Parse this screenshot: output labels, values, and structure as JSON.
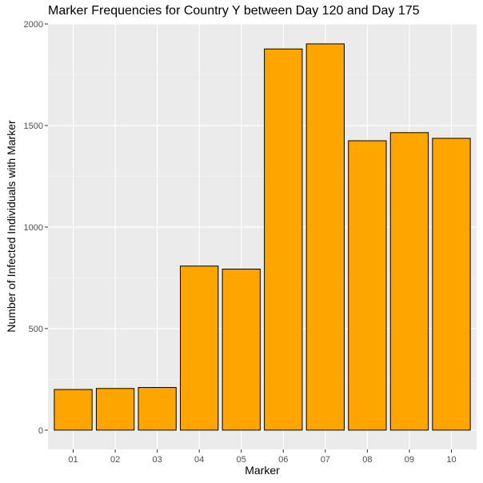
{
  "chart_data": {
    "type": "bar",
    "title": "Marker Frequencies for Country Y between Day 120 and Day 175",
    "xlabel": "Marker",
    "ylabel": "Number of Infected Individuals with Marker",
    "categories": [
      "01",
      "02",
      "03",
      "04",
      "05",
      "06",
      "07",
      "08",
      "09",
      "10"
    ],
    "values": [
      200,
      205,
      210,
      808,
      793,
      1877,
      1902,
      1425,
      1465,
      1437
    ],
    "ylim": [
      0,
      2000
    ],
    "yticks": [
      0,
      500,
      1000,
      1500,
      2000
    ],
    "grid": true,
    "legend": "none",
    "colors": {
      "bar_fill": "#FFA500",
      "bar_stroke": "#000000",
      "panel_background": "#EBEBEB",
      "grid_major": "#FFFFFF",
      "tick_text": "#4D4D4D"
    }
  }
}
